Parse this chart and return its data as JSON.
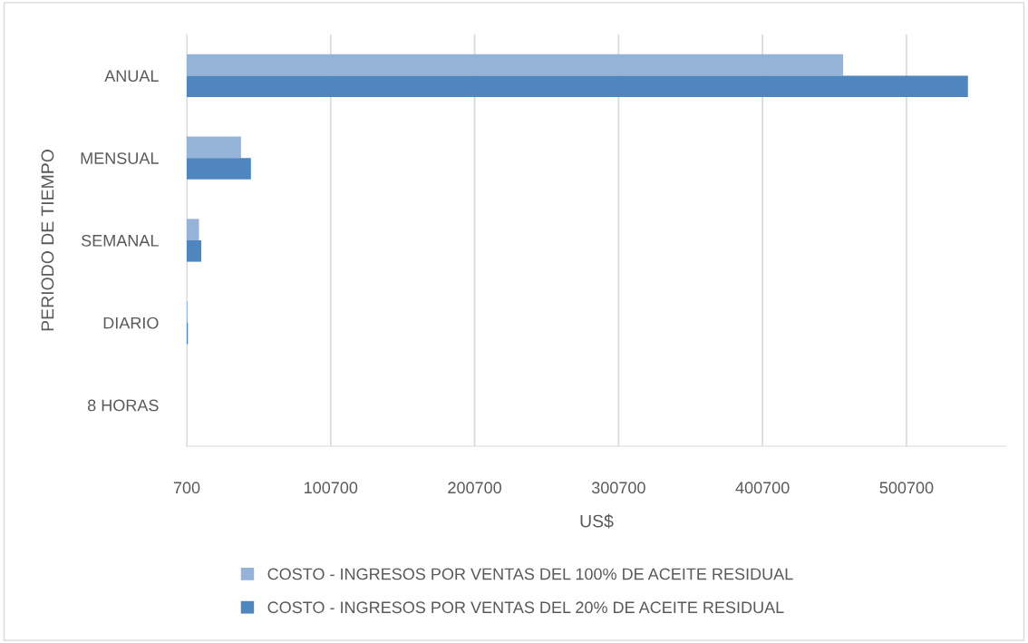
{
  "chart_data": {
    "type": "bar",
    "orientation": "horizontal",
    "xlabel": "US$",
    "ylabel": "PERIODO DE TIEMPO",
    "categories": [
      "ANUAL",
      "MENSUAL",
      "SEMANAL",
      "DIARIO",
      "8 HORAS"
    ],
    "series": [
      {
        "name": "COSTO - INGRESOS POR VENTAS DEL 100% DE ACEITE RESIDUAL",
        "color": "#95b3d7",
        "values": [
          456700,
          38400,
          9200,
          1300,
          null
        ]
      },
      {
        "name": "COSTO - INGRESOS POR VENTAS DEL 20% DE ACEITE RESIDUAL",
        "color": "#4f86be",
        "values": [
          543400,
          45300,
          10800,
          1500,
          null
        ]
      }
    ],
    "xlim": [
      700,
      570000
    ],
    "xticks": [
      700,
      100700,
      200700,
      300700,
      400700,
      500700
    ],
    "grid": "x",
    "legend": "bottom"
  }
}
